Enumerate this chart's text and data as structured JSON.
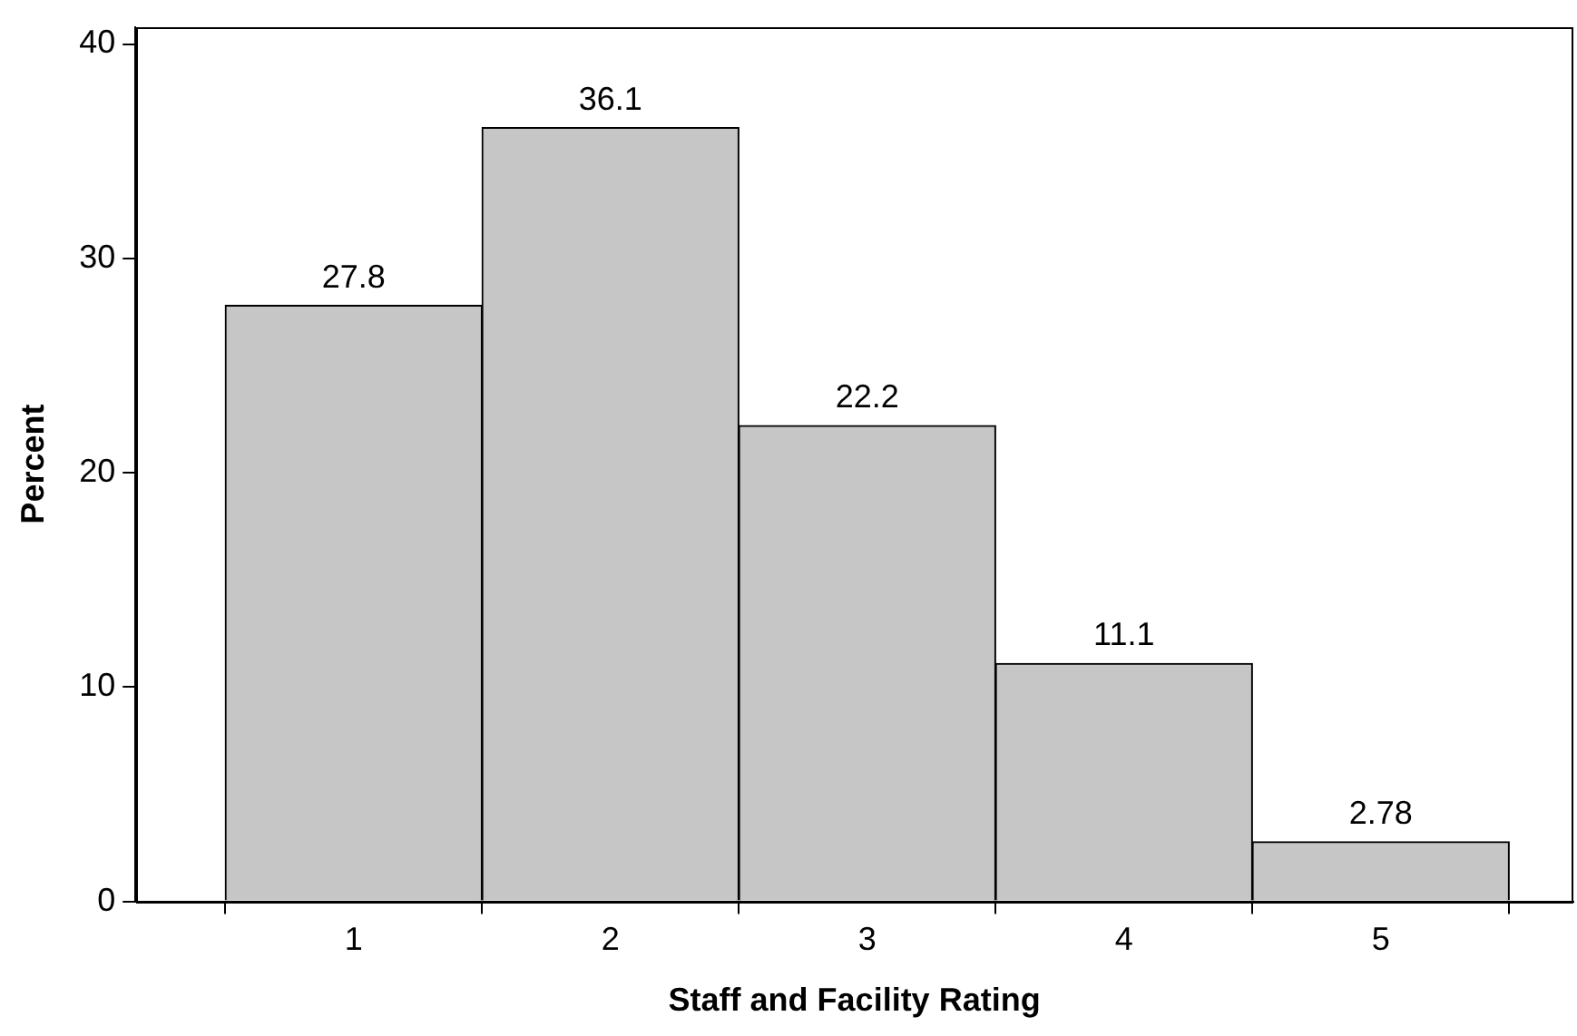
{
  "chart_data": {
    "type": "histogram",
    "xlabel": "Staff and Facility Rating",
    "ylabel": "Percent",
    "bins": [
      0.5,
      1.5,
      2.5,
      3.5,
      4.5,
      5.5
    ],
    "values": [
      27.8,
      36.1,
      22.2,
      11.1,
      2.78
    ],
    "color": "#c6c6c6",
    "xlim": [
      0.15,
      5.75
    ],
    "xticks": [
      1,
      2,
      3,
      4,
      5
    ],
    "ylim": [
      0,
      40.8
    ],
    "yticks": [
      0,
      10,
      20,
      30,
      40
    ],
    "grid": false,
    "legend": false,
    "data_labels": true
  }
}
